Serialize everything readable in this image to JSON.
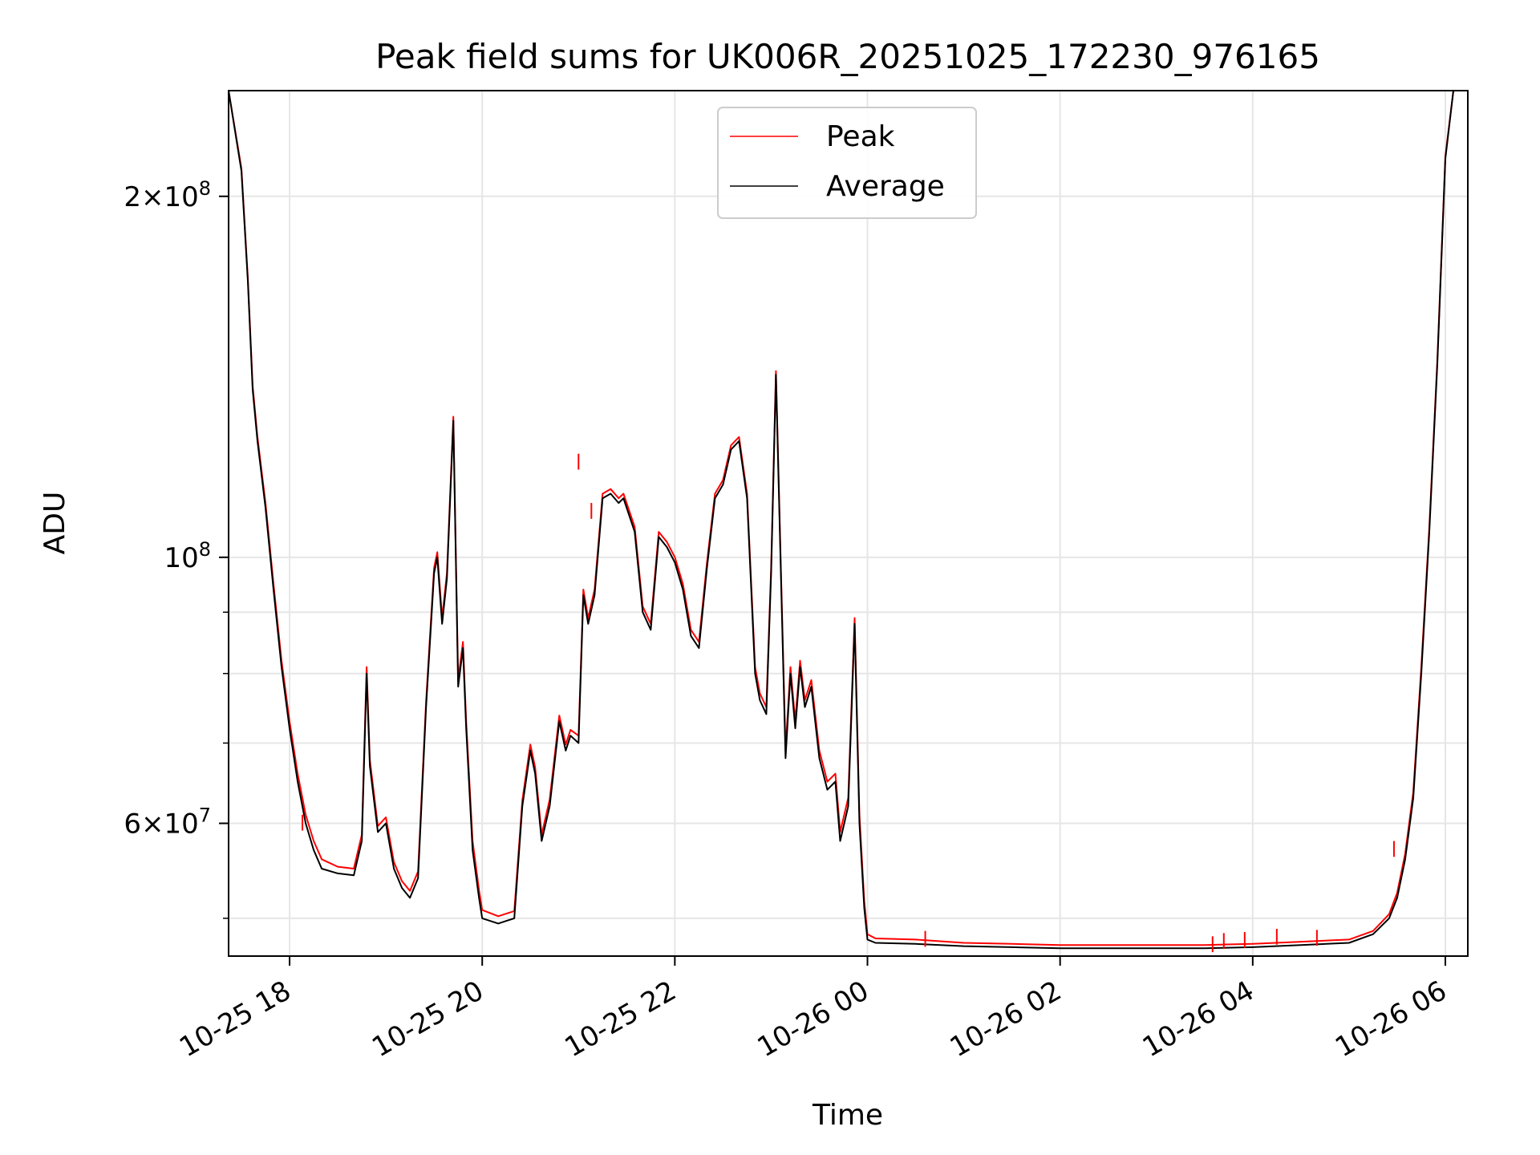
{
  "chart_data": {
    "type": "line",
    "title": "Peak field sums for UK006R_20251025_172230_976165",
    "xlabel": "Time",
    "ylabel": "ADU",
    "yscale": "log",
    "grid": true,
    "legend_position": "top-center",
    "xlim": [
      "2025-10-25 17:22",
      "2025-10-26 06:14"
    ],
    "ylim": [
      46500000,
      245000000
    ],
    "x_ticks": [
      {
        "x": "2025-10-25 18:00",
        "label": "10-25 18"
      },
      {
        "x": "2025-10-25 20:00",
        "label": "10-25 20"
      },
      {
        "x": "2025-10-25 22:00",
        "label": "10-25 22"
      },
      {
        "x": "2025-10-26 00:00",
        "label": "10-26 00"
      },
      {
        "x": "2025-10-26 02:00",
        "label": "10-26 02"
      },
      {
        "x": "2025-10-26 04:00",
        "label": "10-26 04"
      },
      {
        "x": "2025-10-26 06:00",
        "label": "10-26 06"
      }
    ],
    "y_major_ticks": [
      {
        "value": 60000000,
        "mantissa": "6",
        "exponent": "7"
      },
      {
        "value": 100000000,
        "mantissa": "",
        "exponent": "8"
      },
      {
        "value": 200000000,
        "mantissa": "2",
        "exponent": "8"
      }
    ],
    "y_minor_ticks": [
      50000000,
      70000000,
      80000000,
      90000000
    ],
    "series": [
      {
        "name": "Peak",
        "color": "#ff0000"
      },
      {
        "name": "Average",
        "color": "#000000"
      }
    ],
    "x": [
      "2025-10-25 17:22",
      "2025-10-25 17:30",
      "2025-10-25 17:34",
      "2025-10-25 17:37",
      "2025-10-25 17:40",
      "2025-10-25 17:45",
      "2025-10-25 17:50",
      "2025-10-25 17:55",
      "2025-10-25 18:00",
      "2025-10-25 18:05",
      "2025-10-25 18:10",
      "2025-10-25 18:15",
      "2025-10-25 18:20",
      "2025-10-25 18:30",
      "2025-10-25 18:40",
      "2025-10-25 18:45",
      "2025-10-25 18:48",
      "2025-10-25 18:50",
      "2025-10-25 18:55",
      "2025-10-25 19:00",
      "2025-10-25 19:05",
      "2025-10-25 19:10",
      "2025-10-25 19:15",
      "2025-10-25 19:20",
      "2025-10-25 19:25",
      "2025-10-25 19:30",
      "2025-10-25 19:32",
      "2025-10-25 19:35",
      "2025-10-25 19:38",
      "2025-10-25 19:42",
      "2025-10-25 19:45",
      "2025-10-25 19:48",
      "2025-10-25 19:50",
      "2025-10-25 19:54",
      "2025-10-25 19:58",
      "2025-10-25 20:00",
      "2025-10-25 20:10",
      "2025-10-25 20:20",
      "2025-10-25 20:25",
      "2025-10-25 20:30",
      "2025-10-25 20:33",
      "2025-10-25 20:37",
      "2025-10-25 20:42",
      "2025-10-25 20:48",
      "2025-10-25 20:52",
      "2025-10-25 20:55",
      "2025-10-25 21:00",
      "2025-10-25 21:03",
      "2025-10-25 21:06",
      "2025-10-25 21:10",
      "2025-10-25 21:15",
      "2025-10-25 21:20",
      "2025-10-25 21:25",
      "2025-10-25 21:28",
      "2025-10-25 21:35",
      "2025-10-25 21:40",
      "2025-10-25 21:45",
      "2025-10-25 21:50",
      "2025-10-25 21:55",
      "2025-10-25 22:00",
      "2025-10-25 22:05",
      "2025-10-25 22:10",
      "2025-10-25 22:15",
      "2025-10-25 22:20",
      "2025-10-25 22:25",
      "2025-10-25 22:30",
      "2025-10-25 22:35",
      "2025-10-25 22:40",
      "2025-10-25 22:45",
      "2025-10-25 22:50",
      "2025-10-25 22:53",
      "2025-10-25 22:57",
      "2025-10-25 23:00",
      "2025-10-25 23:03",
      "2025-10-25 23:06",
      "2025-10-25 23:09",
      "2025-10-25 23:12",
      "2025-10-25 23:15",
      "2025-10-25 23:18",
      "2025-10-25 23:21",
      "2025-10-25 23:25",
      "2025-10-25 23:30",
      "2025-10-25 23:35",
      "2025-10-25 23:40",
      "2025-10-25 23:43",
      "2025-10-25 23:48",
      "2025-10-25 23:52",
      "2025-10-25 23:55",
      "2025-10-25 23:58",
      "2025-10-26 00:00",
      "2025-10-26 00:05",
      "2025-10-26 00:30",
      "2025-10-26 01:00",
      "2025-10-26 01:30",
      "2025-10-26 02:00",
      "2025-10-26 02:30",
      "2025-10-26 03:00",
      "2025-10-26 03:30",
      "2025-10-26 04:00",
      "2025-10-26 04:30",
      "2025-10-26 05:00",
      "2025-10-26 05:15",
      "2025-10-26 05:25",
      "2025-10-26 05:30",
      "2025-10-26 05:35",
      "2025-10-26 05:40",
      "2025-10-26 05:45",
      "2025-10-26 05:50",
      "2025-10-26 05:55",
      "2025-10-26 06:00",
      "2025-10-26 06:05"
    ],
    "average": [
      245000000,
      210000000,
      170000000,
      138000000,
      125000000,
      110000000,
      94000000,
      81000000,
      72000000,
      65000000,
      60000000,
      57000000,
      55000000,
      54500000,
      54300000,
      58000000,
      80000000,
      67000000,
      59000000,
      60000000,
      55000000,
      53000000,
      52000000,
      54000000,
      75000000,
      97000000,
      100000000,
      88000000,
      96000000,
      130000000,
      78000000,
      84000000,
      72000000,
      57000000,
      52000000,
      50000000,
      49500000,
      50000000,
      62000000,
      69000000,
      66000000,
      58000000,
      62000000,
      73000000,
      69000000,
      71000000,
      70000000,
      93000000,
      88000000,
      93000000,
      112000000,
      113000000,
      111000000,
      112000000,
      105000000,
      90000000,
      87000000,
      104000000,
      102000000,
      99000000,
      94000000,
      86000000,
      84000000,
      98000000,
      112000000,
      115000000,
      123000000,
      125000000,
      112000000,
      80000000,
      76000000,
      74000000,
      97000000,
      142000000,
      98000000,
      68000000,
      80000000,
      72000000,
      81000000,
      75000000,
      78000000,
      68000000,
      64000000,
      65000000,
      58000000,
      62000000,
      88000000,
      60000000,
      51000000,
      48000000,
      47700000,
      47600000,
      47400000,
      47300000,
      47200000,
      47200000,
      47200000,
      47200000,
      47300000,
      47500000,
      47700000,
      48500000,
      50000000,
      52000000,
      56000000,
      63000000,
      80000000,
      105000000,
      145000000,
      215000000,
      245000000
    ],
    "peak": [
      245000000,
      211000000,
      171000000,
      139000000,
      126000000,
      111000000,
      95000000,
      82000000,
      73000000,
      66000000,
      61000000,
      58000000,
      56000000,
      55200000,
      55000000,
      58700000,
      81000000,
      67800000,
      59700000,
      60700000,
      55700000,
      53700000,
      52700000,
      54700000,
      75800000,
      98000000,
      101000000,
      89000000,
      97000000,
      131000000,
      79000000,
      85000000,
      73000000,
      58000000,
      52800000,
      50800000,
      50200000,
      50700000,
      62700000,
      69800000,
      66800000,
      58700000,
      62800000,
      73800000,
      69800000,
      71800000,
      71000000,
      94000000,
      89000000,
      94000000,
      113000000,
      114000000,
      112000000,
      113000000,
      106000000,
      91000000,
      88000000,
      105000000,
      103000000,
      100000000,
      95000000,
      87000000,
      85000000,
      99000000,
      113000000,
      116000000,
      124000000,
      126000000,
      113000000,
      81000000,
      77000000,
      75000000,
      98000000,
      143000000,
      99000000,
      69000000,
      81000000,
      73000000,
      82000000,
      76000000,
      79000000,
      69000000,
      65000000,
      66000000,
      59000000,
      63000000,
      89000000,
      61000000,
      51700000,
      48500000,
      48100000,
      48000000,
      47700000,
      47600000,
      47500000,
      47500000,
      47500000,
      47500000,
      47600000,
      47800000,
      48000000,
      48800000,
      50400000,
      52500000,
      56600000,
      63700000,
      81000000,
      106000000,
      146000000,
      216000000,
      245000000
    ],
    "peak_spikes": [
      {
        "x": "2025-10-25 18:08",
        "value": 61000000
      },
      {
        "x": "2025-10-25 21:00",
        "value": 122000000
      },
      {
        "x": "2025-10-25 21:08",
        "value": 111000000
      },
      {
        "x": "2025-10-26 00:36",
        "value": 48800000
      },
      {
        "x": "2025-10-26 03:35",
        "value": 48300000
      },
      {
        "x": "2025-10-26 03:42",
        "value": 48600000
      },
      {
        "x": "2025-10-26 03:55",
        "value": 48700000
      },
      {
        "x": "2025-10-26 04:15",
        "value": 49000000
      },
      {
        "x": "2025-10-26 04:40",
        "value": 48900000
      },
      {
        "x": "2025-10-26 05:28",
        "value": 58000000
      }
    ]
  }
}
